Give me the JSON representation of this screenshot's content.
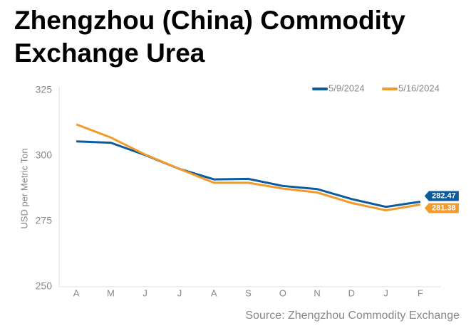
{
  "chart_data": {
    "type": "line",
    "title": "Zhengzhou (China) Commodity Exchange Urea",
    "y_label": "USD per Metric Ton",
    "source": "Source: Zhengzhou Commodity Exchange",
    "categories": [
      "A",
      "M",
      "J",
      "J",
      "A",
      "S",
      "O",
      "N",
      "D",
      "J",
      "F"
    ],
    "series": [
      {
        "name": "5/9/2024",
        "color": "#0b5b9e",
        "values": [
          305.5,
          305,
          300.3,
          295,
          291,
          291.2,
          288.5,
          287.3,
          283.5,
          280.5,
          282.47
        ]
      },
      {
        "name": "5/16/2024",
        "color": "#f29b2c",
        "values": [
          312,
          307,
          300.5,
          295,
          289.7,
          289.7,
          287.5,
          286,
          282,
          279.2,
          281.38
        ]
      }
    ],
    "ylim": [
      250,
      325
    ],
    "yticks": [
      250,
      275,
      300,
      325
    ],
    "grid": false,
    "legend": "top-right"
  }
}
